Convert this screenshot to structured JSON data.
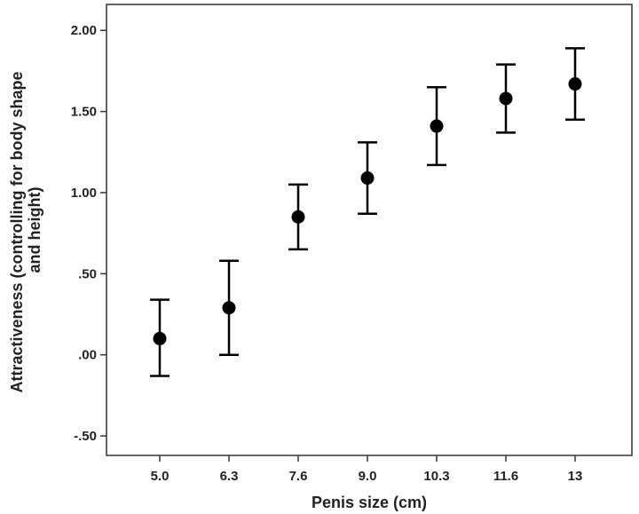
{
  "chart_data": {
    "type": "scatter",
    "xlabel": "Penis size (cm)",
    "ylabel_lines": [
      "Attractiveness (controlling for body shape",
      "and height)"
    ],
    "categories": [
      "5.0",
      "6.3",
      "7.6",
      "9.0",
      "10.3",
      "11.6",
      "13"
    ],
    "series": [
      {
        "values": [
          0.1,
          0.29,
          0.85,
          1.09,
          1.41,
          1.58,
          1.67
        ],
        "error_low": [
          -0.13,
          0.0,
          0.65,
          0.87,
          1.17,
          1.37,
          1.45
        ],
        "error_high": [
          0.34,
          0.58,
          1.05,
          1.31,
          1.65,
          1.79,
          1.89
        ]
      }
    ],
    "yticks": [
      -0.5,
      0.0,
      0.5,
      1.0,
      1.5,
      2.0
    ],
    "ytick_labels": [
      "-.50",
      ".00",
      ".50",
      "1.00",
      "1.50",
      "2.00"
    ],
    "ylim": [
      -0.62,
      2.16
    ],
    "grid": false,
    "marker_color": "#000000"
  }
}
